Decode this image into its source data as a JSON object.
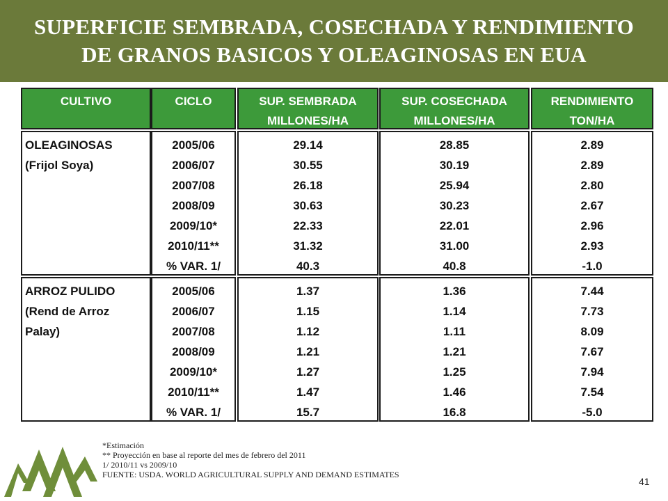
{
  "title": {
    "line1": "SUPERFICIE SEMBRADA, COSECHADA  Y RENDIMIENTO",
    "line2": "DE GRANOS BASICOS Y OLEAGINOSAS EN EUA"
  },
  "table": {
    "headers": {
      "cultivo": [
        "CULTIVO"
      ],
      "ciclo": [
        "CICLO"
      ],
      "sembrada": [
        "SUP. SEMBRADA",
        "MILLONES/HA"
      ],
      "cosechada": [
        "SUP. COSECHADA",
        "MILLONES/HA"
      ],
      "rendimiento": [
        "RENDIMIENTO",
        "TON/HA"
      ]
    },
    "groups": [
      {
        "crop": [
          "OLEAGINOSAS",
          "(Frijol Soya)"
        ],
        "ciclo": [
          "2005/06",
          "2006/07",
          "2007/08",
          "2008/09",
          "2009/10*",
          "2010/11**",
          "% VAR. 1/"
        ],
        "sembrada": [
          "29.14",
          "30.55",
          "26.18",
          "30.63",
          "22.33",
          "31.32",
          "40.3"
        ],
        "cosechada": [
          "28.85",
          "30.19",
          "25.94",
          "30.23",
          "22.01",
          "31.00",
          "40.8"
        ],
        "rendimiento": [
          "2.89",
          "2.89",
          "2.80",
          "2.67",
          "2.96",
          "2.93",
          "-1.0"
        ]
      },
      {
        "crop": [
          "ARROZ PULIDO",
          "(Rend de Arroz",
          "Palay)"
        ],
        "ciclo": [
          "2005/06",
          "2006/07",
          "2007/08",
          "2008/09",
          "2009/10*",
          "2010/11**",
          "% VAR. 1/"
        ],
        "sembrada": [
          "1.37",
          "1.15",
          "1.12",
          "1.21",
          "1.27",
          "1.47",
          "15.7"
        ],
        "cosechada": [
          "1.36",
          "1.14",
          "1.11",
          "1.21",
          "1.25",
          "1.46",
          "16.8"
        ],
        "rendimiento": [
          "7.44",
          "7.73",
          "8.09",
          "7.67",
          "7.94",
          "7.54",
          "-5.0"
        ]
      }
    ]
  },
  "notes": [
    "*Estimación",
    "** Proyección en base al reporte  del mes de febrero del 2011",
    "1/ 2010/11 vs 2009/10",
    "FUENTE: USDA. WORLD AGRICULTURAL SUPPLY AND DEMAND ESTIMATES"
  ],
  "page_number": "41",
  "colors": {
    "title_bar": "#6b7a3a",
    "header_fill": "#3d9a3a",
    "logo_green": "#6f8e3a"
  }
}
